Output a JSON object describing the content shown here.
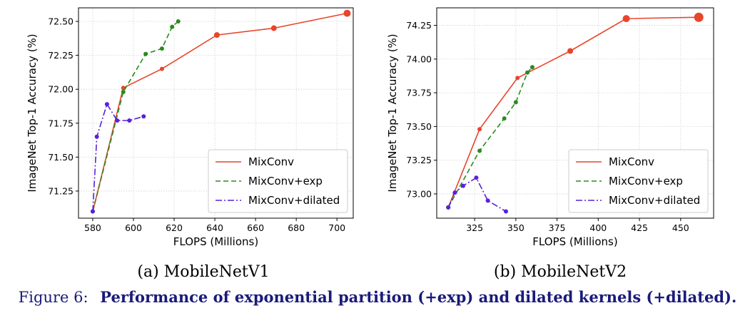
{
  "chart_data": [
    {
      "type": "line",
      "subcaption": "(a) MobileNetV1",
      "xlabel": "FLOPS (Millions)",
      "ylabel": "ImageNet Top-1 Accuracy (%)",
      "xlim": [
        573,
        708
      ],
      "ylim": [
        71.05,
        72.6
      ],
      "xticks": [
        580,
        600,
        620,
        640,
        660,
        680,
        700
      ],
      "yticks": [
        71.25,
        71.5,
        71.75,
        72.0,
        72.25,
        72.5
      ],
      "ytick_labels": [
        "71.25",
        "71.50",
        "71.75",
        "72.00",
        "72.25",
        "72.50"
      ],
      "grid": true,
      "legend_position": "lower-right",
      "series": [
        {
          "name": "MixConv",
          "color": "#e8452c",
          "style": "solid",
          "x": [
            580,
            595,
            614,
            641,
            669,
            705
          ],
          "y": [
            71.1,
            72.01,
            72.15,
            72.4,
            72.45,
            72.56
          ],
          "sizes": [
            3,
            3,
            3,
            4,
            4,
            5
          ]
        },
        {
          "name": "MixConv+exp",
          "color": "#2b8a1f",
          "style": "dashed",
          "x": [
            580,
            595,
            606,
            614,
            619,
            622
          ],
          "y": [
            71.1,
            71.98,
            72.26,
            72.3,
            72.46,
            72.5
          ],
          "sizes": [
            3,
            3,
            3,
            3,
            3,
            3
          ]
        },
        {
          "name": "MixConv+dilated",
          "color": "#5a1fe0",
          "style": "dashdot",
          "x": [
            580,
            582,
            587,
            592,
            598,
            605
          ],
          "y": [
            71.1,
            71.65,
            71.89,
            71.77,
            71.77,
            71.8
          ],
          "sizes": [
            3,
            3,
            3,
            3,
            3,
            3
          ]
        }
      ]
    },
    {
      "type": "line",
      "subcaption": "(b) MobileNetV2",
      "xlabel": "FLOPS (Millions)",
      "ylabel": "ImageNet Top-1 Accuracy (%)",
      "xlim": [
        302,
        470
      ],
      "ylim": [
        72.82,
        74.38
      ],
      "xticks": [
        325,
        350,
        375,
        400,
        425,
        450
      ],
      "yticks": [
        73.0,
        73.25,
        73.5,
        73.75,
        74.0,
        74.25
      ],
      "ytick_labels": [
        "73.00",
        "73.25",
        "73.50",
        "73.75",
        "74.00",
        "74.25"
      ],
      "grid": true,
      "legend_position": "lower-right",
      "series": [
        {
          "name": "MixConv",
          "color": "#e8452c",
          "style": "solid",
          "x": [
            309,
            328,
            351,
            383,
            417,
            461
          ],
          "y": [
            72.9,
            73.48,
            73.86,
            74.06,
            74.3,
            74.31
          ],
          "sizes": [
            3,
            3,
            3,
            4,
            5,
            6.5
          ]
        },
        {
          "name": "MixConv+exp",
          "color": "#2b8a1f",
          "style": "dashed",
          "x": [
            309,
            328,
            343,
            350,
            357,
            360
          ],
          "y": [
            72.9,
            73.32,
            73.56,
            73.68,
            73.9,
            73.94
          ],
          "sizes": [
            3,
            3,
            3,
            3,
            3,
            3
          ]
        },
        {
          "name": "MixConv+dilated",
          "color": "#5a1fe0",
          "style": "dashdot",
          "x": [
            309,
            313,
            318,
            326,
            333,
            344
          ],
          "y": [
            72.9,
            73.01,
            73.06,
            73.12,
            72.95,
            72.87
          ],
          "sizes": [
            3,
            3,
            3,
            3,
            3,
            3
          ]
        }
      ]
    }
  ],
  "caption": {
    "label": "Figure 6:",
    "text": "Performance of exponential partition (+exp) and dilated kernels (+dilated)."
  }
}
